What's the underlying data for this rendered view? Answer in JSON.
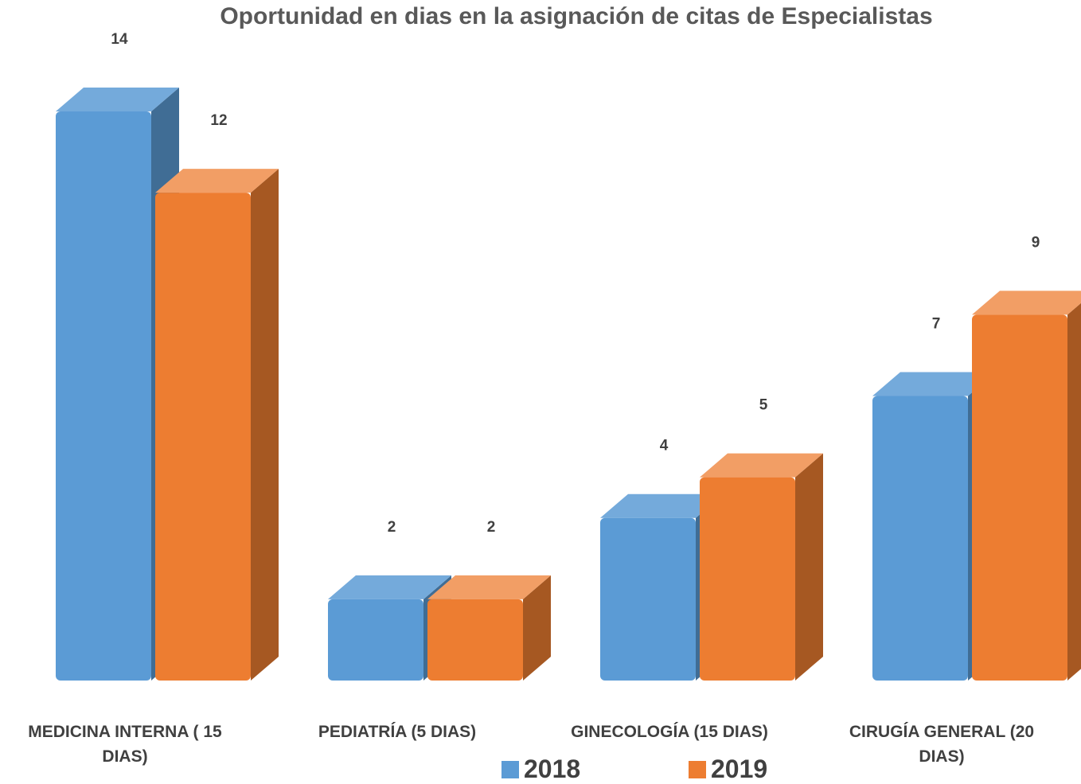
{
  "chart_data": {
    "type": "bar3d",
    "title": "Oportunidad en dias en la asignación de citas de Especialistas",
    "categories": [
      "MEDICINA INTERNA   ( 15 DIAS)",
      "PEDIATRÍA  (5 DIAS)",
      "GINECOLOGÍA        (15 DIAS)",
      "CIRUGÍA GENERAL (20 DIAS)"
    ],
    "series": [
      {
        "name": "2018",
        "color": "#5b9bd5",
        "values": [
          14,
          2,
          4,
          7
        ]
      },
      {
        "name": "2019",
        "color": "#ed7d31",
        "values": [
          12,
          2,
          5,
          9
        ]
      }
    ]
  }
}
